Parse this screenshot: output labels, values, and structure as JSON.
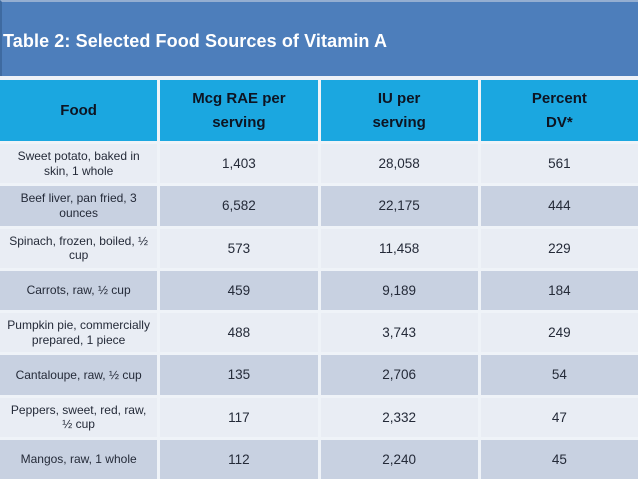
{
  "slide": {
    "title": "Table 2: Selected Food Sources of Vitamin A"
  },
  "colors": {
    "title_band": "#4D7EBB",
    "header_bg": "#1BA7E0",
    "row_light": "#E9EDF4",
    "row_dark": "#C8D1E1",
    "title_text": "#FFFFFF",
    "header_text": "#0D1422"
  },
  "table": {
    "header": [
      {
        "line1": "Food",
        "line2": ""
      },
      {
        "line1": "Mcg RAE per",
        "line2": "serving"
      },
      {
        "line1": "IU per",
        "line2": "serving"
      },
      {
        "line1": "Percent",
        "line2": "DV*"
      }
    ],
    "rows": [
      {
        "food": "Sweet potato, baked in skin, 1 whole",
        "mcg": "1,403",
        "iu": "28,058",
        "dv": "561"
      },
      {
        "food": "Beef liver, pan fried, 3 ounces",
        "mcg": "6,582",
        "iu": "22,175",
        "dv": "444"
      },
      {
        "food": "Spinach, frozen, boiled, ½ cup",
        "mcg": "573",
        "iu": "11,458",
        "dv": "229"
      },
      {
        "food": "Carrots, raw, ½ cup",
        "mcg": "459",
        "iu": "9,189",
        "dv": "184"
      },
      {
        "food": "Pumpkin pie, commercially prepared, 1 piece",
        "mcg": "488",
        "iu": "3,743",
        "dv": "249"
      },
      {
        "food": "Cantaloupe, raw, ½ cup",
        "mcg": "135",
        "iu": "2,706",
        "dv": "54"
      },
      {
        "food": "Peppers, sweet, red, raw, ½ cup",
        "mcg": "117",
        "iu": "2,332",
        "dv": "47"
      },
      {
        "food": "Mangos, raw, 1 whole",
        "mcg": "112",
        "iu": "2,240",
        "dv": "45"
      }
    ]
  }
}
